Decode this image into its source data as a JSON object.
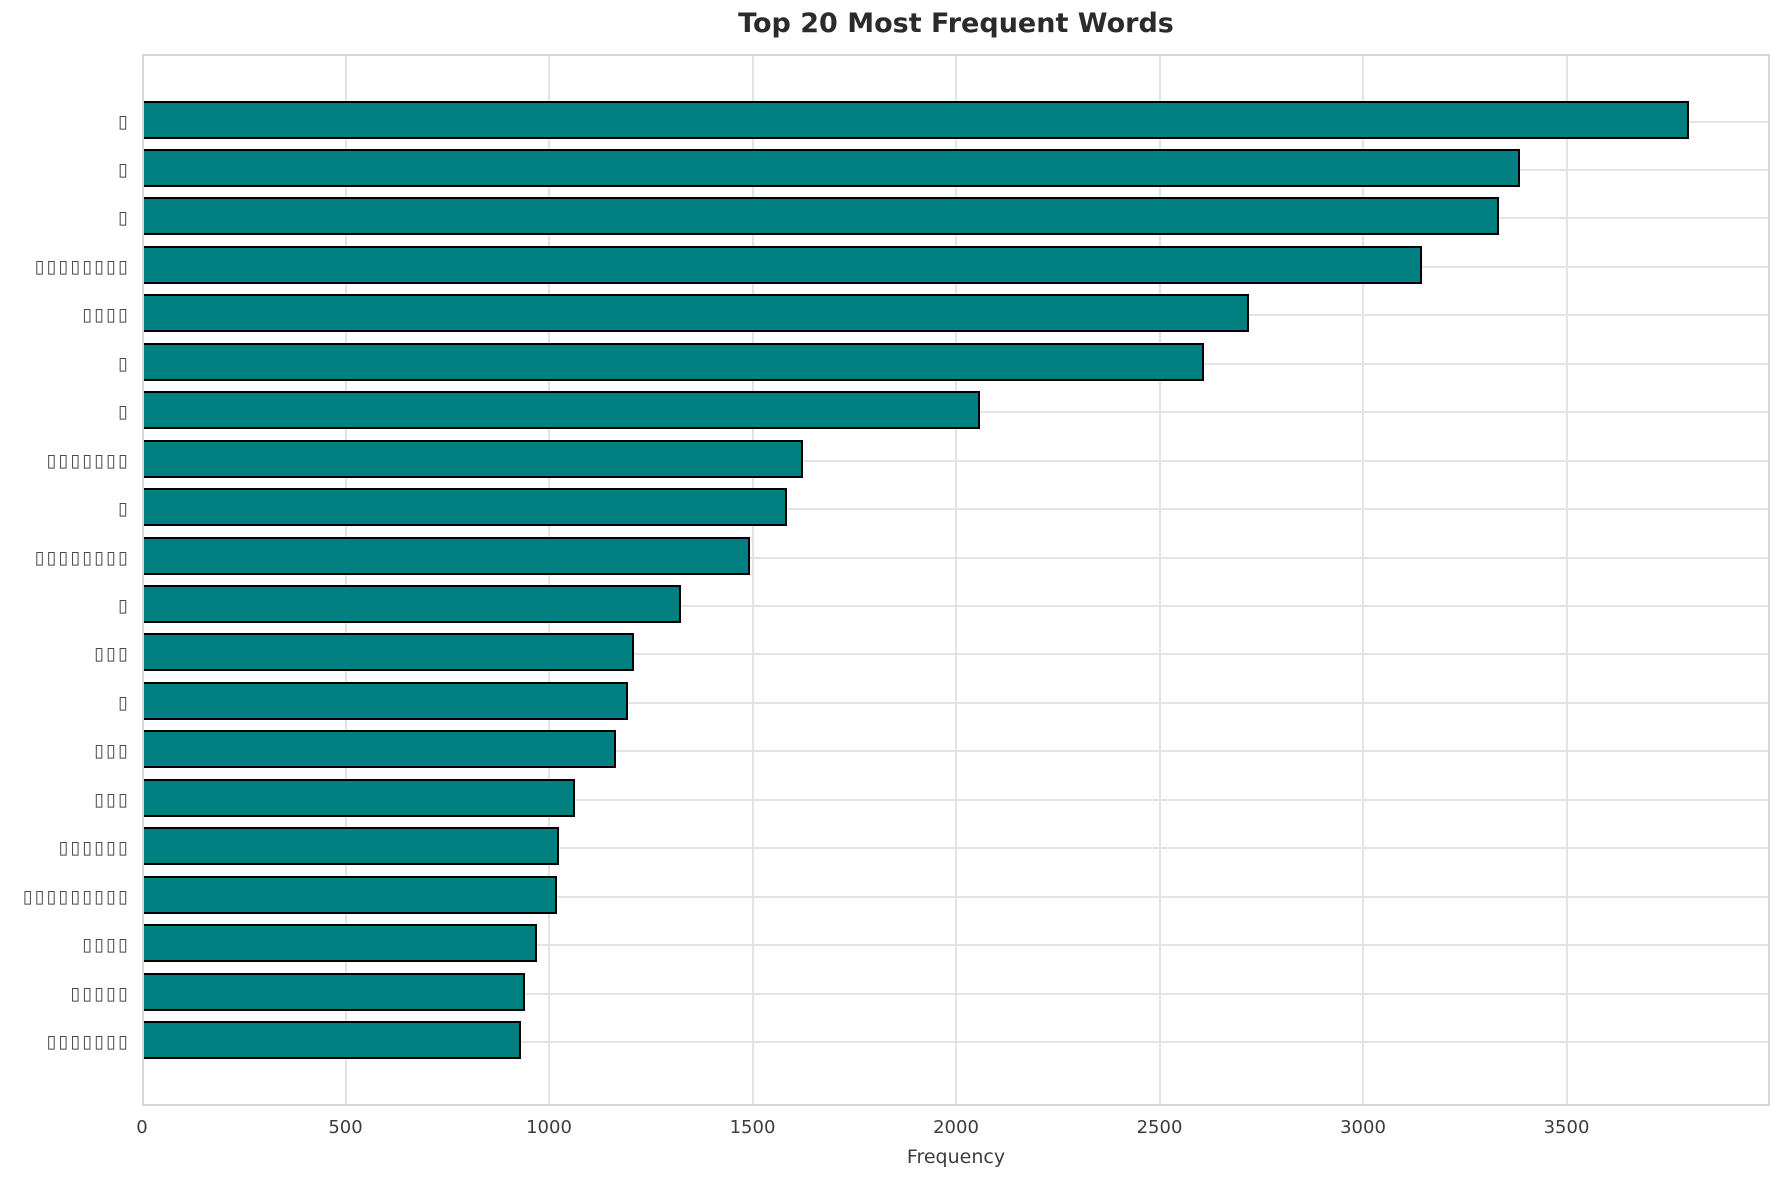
{
  "title": "Top 20 Most Frequent Words",
  "axis": {
    "xlabel": "Frequency"
  },
  "colors": {
    "bar_fill": "#008080",
    "bar_edge": "#000000",
    "gridline": "#e4e4e4",
    "spine": "#d6d6d6",
    "title_text": "#2b2b2b",
    "tick_text": "#3d3d3d"
  },
  "chart_data": {
    "type": "bar",
    "orientation": "horizontal",
    "title": "Top 20 Most Frequent Words",
    "xlabel": "Frequency",
    "ylabel": "",
    "grid": true,
    "xlim": [
      0,
      4000
    ],
    "xticks": [
      0,
      500,
      1000,
      1500,
      2000,
      2500,
      3000,
      3500
    ],
    "xtick_labels": [
      "0",
      "500",
      "1000",
      "1500",
      "2000",
      "2500",
      "3000",
      "3500"
    ],
    "categories_note": "y-axis category labels appear as missing-glyph (tofu) boxes in the screenshot; each string below reproduces the visible box count",
    "categories": [
      "▯",
      "▯",
      "▯",
      "▯▯▯▯▯▯▯▯",
      "▯▯▯▯",
      "▯",
      "▯",
      "▯▯▯▯▯▯▯",
      "▯",
      "▯▯▯▯▯▯▯▯",
      "▯",
      "▯▯▯",
      "▯",
      "▯▯▯",
      "▯▯▯",
      "▯▯▯▯▯▯",
      "▯▯▯▯▯▯▯▯▯",
      "▯▯▯▯",
      "▯▯▯▯▯",
      "▯▯▯▯▯▯▯"
    ],
    "values": [
      3800,
      3385,
      3335,
      3145,
      2720,
      2610,
      2060,
      1625,
      1585,
      1495,
      1325,
      1210,
      1195,
      1165,
      1065,
      1025,
      1020,
      970,
      940,
      930
    ]
  }
}
